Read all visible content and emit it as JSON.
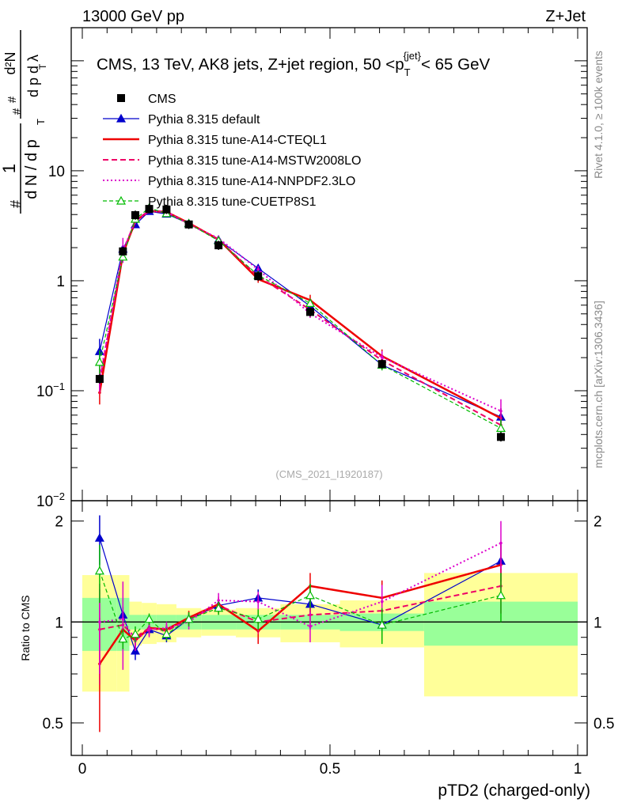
{
  "header": {
    "left": "13000 GeV pp",
    "right": "Z+Jet"
  },
  "side_labels": {
    "rivet": "Rivet 4.1.0, ≥ 100k events",
    "mcplots": "mcplots.cern.ch [arXiv:1306.3436]"
  },
  "chart_data": {
    "type": "line",
    "title": "CMS, 13 TeV, AK8 jets, Z+jet region, 50 <p_T^{jet}< 65 GeV",
    "title_main": "CMS, 13 TeV, AK8 jets, Z+jet region, 50 <p",
    "title_sup": "{jet}",
    "title_sub": "T",
    "title_tail": "< 65 GeV",
    "analysis_id": "(CMS_2021_I1920187)",
    "xlabel": "pTD2 (charged-only)",
    "ylabel_upper": "1/dN/dp_T d^2N/dp_T dλ",
    "ylabel_lower": "Ratio to CMS",
    "xlim": [
      0,
      1
    ],
    "ylim_upper": [
      0.01,
      200
    ],
    "ylim_lower": [
      0.4,
      2.3
    ],
    "yscale_upper": "log",
    "yscale_lower": "log",
    "x_ticks": [
      {
        "value": 0,
        "label": "0"
      },
      {
        "value": 0.5,
        "label": "0.5"
      },
      {
        "value": 1,
        "label": "1"
      }
    ],
    "y_ticks_upper": [
      {
        "value": 0.01,
        "base": "10",
        "exp": "−2"
      },
      {
        "value": 0.1,
        "base": "10",
        "exp": "−1"
      },
      {
        "value": 1,
        "base": "1",
        "exp": ""
      },
      {
        "value": 10,
        "base": "10",
        "exp": ""
      }
    ],
    "y_ticks_lower": [
      {
        "value": 0.5,
        "label": "0.5"
      },
      {
        "value": 1,
        "label": "1"
      },
      {
        "value": 2,
        "label": "2"
      }
    ],
    "bin_edges": [
      0,
      0.07,
      0.095,
      0.12,
      0.15,
      0.19,
      0.24,
      0.31,
      0.4,
      0.52,
      0.69,
      1.0
    ],
    "band_inner": [
      0.18,
      0.18,
      0.05,
      0.05,
      0.05,
      0.05,
      0.05,
      0.05,
      0.05,
      0.06,
      0.15
    ],
    "band_outer": [
      0.38,
      0.38,
      0.15,
      0.14,
      0.13,
      0.1,
      0.09,
      0.1,
      0.13,
      0.16,
      0.4
    ],
    "x": [
      0.035,
      0.082,
      0.107,
      0.135,
      0.17,
      0.215,
      0.275,
      0.355,
      0.46,
      0.605,
      0.845
    ],
    "cms": [
      0.128,
      1.85,
      3.95,
      4.5,
      4.45,
      3.25,
      2.1,
      1.1,
      0.52,
      0.175,
      0.038
    ],
    "series": [
      {
        "name": "Pythia 8.315 default",
        "color": "#0000cc",
        "dash": "",
        "marker": "triangle-filled",
        "width": 1.2,
        "ratio": [
          1.78,
          1.05,
          0.82,
          0.95,
          0.91,
          1.02,
          1.12,
          1.18,
          1.13,
          0.98,
          1.52
        ],
        "rerr": [
          0.3,
          0.06,
          0.05,
          0.04,
          0.04,
          0.04,
          0.05,
          0.07,
          0.09,
          0.1,
          0.2
        ]
      },
      {
        "name": "Pythia 8.315 tune-A14-CTEQL1",
        "color": "#ee0000",
        "dash": "",
        "marker": "",
        "width": 2.5,
        "ratio": [
          0.75,
          0.95,
          0.88,
          0.96,
          0.95,
          1.03,
          1.13,
          0.94,
          1.28,
          1.18,
          1.48
        ],
        "rerr": [
          0.28,
          0.06,
          0.05,
          0.04,
          0.04,
          0.05,
          0.06,
          0.08,
          0.12,
          0.15,
          0.22
        ]
      },
      {
        "name": "Pythia 8.315 tune-A14-MSTW2008LO",
        "color": "#ee0066",
        "dash": "7,4",
        "marker": "",
        "width": 2,
        "ratio": [
          0.95,
          0.98,
          0.9,
          0.96,
          0.94,
          1.02,
          1.12,
          1.0,
          1.05,
          1.08,
          1.28
        ],
        "rerr": [
          0.3,
          0.06,
          0.05,
          0.04,
          0.04,
          0.05,
          0.06,
          0.08,
          0.1,
          0.12,
          0.22
        ]
      },
      {
        "name": "Pythia 8.315 tune-A14-NNPDF2.3LO",
        "color": "#dd00cc",
        "dash": "2,3",
        "marker": "",
        "width": 2,
        "ratio": [
          1.0,
          1.02,
          0.88,
          0.95,
          0.96,
          1.0,
          1.16,
          1.15,
          0.97,
          1.15,
          1.72
        ],
        "rerr": [
          0.3,
          0.3,
          0.06,
          0.05,
          0.04,
          0.05,
          0.06,
          0.08,
          0.1,
          0.14,
          0.28
        ]
      },
      {
        "name": "Pythia 8.315 tune-CUETP8S1",
        "color": "#00bb00",
        "dash": "5,3",
        "marker": "triangle-open",
        "width": 1.2,
        "ratio": [
          1.42,
          0.89,
          0.92,
          1.02,
          0.92,
          1.02,
          1.1,
          1.02,
          1.2,
          0.98,
          1.2
        ],
        "rerr": [
          0.28,
          0.06,
          0.05,
          0.04,
          0.04,
          0.05,
          0.05,
          0.07,
          0.1,
          0.12,
          0.2
        ]
      }
    ],
    "legend": {
      "position": "top-left",
      "entries": [
        "CMS",
        "Pythia 8.315 default",
        "Pythia 8.315 tune-A14-CTEQL1",
        "Pythia 8.315 tune-A14-MSTW2008LO",
        "Pythia 8.315 tune-A14-NNPDF2.3LO",
        "Pythia 8.315 tune-CUETP8S1"
      ]
    },
    "band_colors": {
      "inner": "#99ff99",
      "outer": "#ffff99"
    },
    "reference_line": 1
  }
}
